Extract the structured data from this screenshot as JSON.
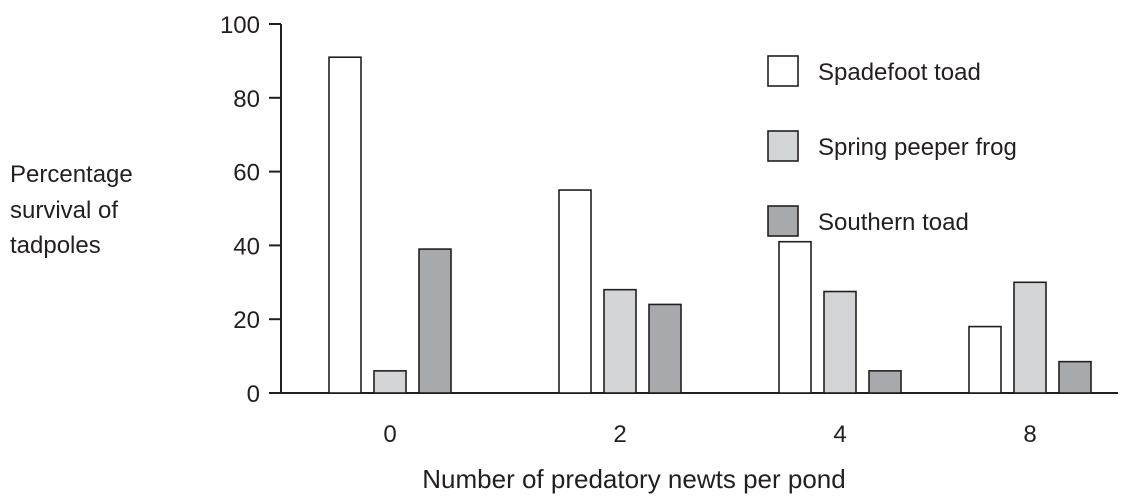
{
  "chart_data": {
    "type": "bar",
    "ylabel": [
      "Percentage",
      "survival of",
      "tadpoles"
    ],
    "xlabel": "Number of predatory newts per pond",
    "categories": [
      "0",
      "2",
      "4",
      "8"
    ],
    "yticks": [
      "0",
      "20",
      "40",
      "60",
      "80",
      "100"
    ],
    "ylim": [
      0,
      100
    ],
    "grid": false,
    "legend_position": "top-right",
    "series": [
      {
        "name": "Spadefoot toad",
        "color": "#ffffff",
        "values": [
          91,
          55,
          41,
          18
        ]
      },
      {
        "name": "Spring peeper frog",
        "color": "#d4d5d7",
        "values": [
          6,
          28,
          27.5,
          30
        ]
      },
      {
        "name": "Southern toad",
        "color": "#a7a9ac",
        "values": [
          39,
          24,
          6,
          8.5
        ]
      }
    ]
  }
}
